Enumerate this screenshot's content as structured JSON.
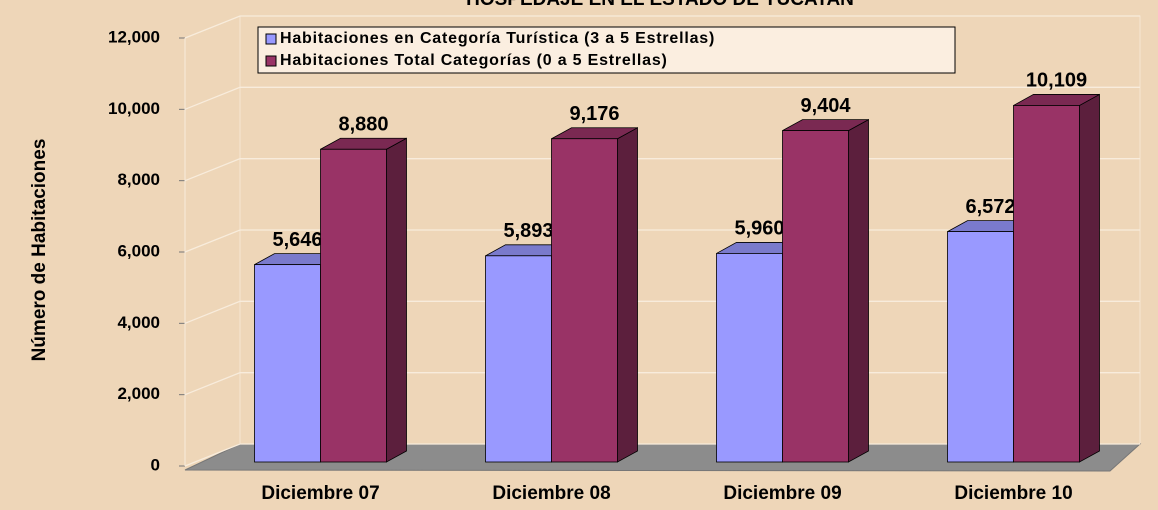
{
  "chart_data": {
    "type": "bar3d",
    "title": "HOSPEDAJE EN EL ESTADO DE YUCATAN",
    "y_label": "Número de Habitaciones",
    "categories": [
      "Diciembre 07",
      "Diciembre 08",
      "Diciembre 09",
      "Diciembre 10"
    ],
    "series": [
      {
        "name": "Habitaciones en Categoría Turística (3 a 5 Estrellas)",
        "color": "#9999ff",
        "values": [
          5646,
          5893,
          5960,
          6572
        ],
        "value_labels": [
          "5,646",
          "5,893",
          "5,960",
          "6,572"
        ]
      },
      {
        "name": "Habitaciones Total Categorías (0 a 5 Estrellas)",
        "color": "#993366",
        "values": [
          8880,
          9176,
          9404,
          10109
        ],
        "value_labels": [
          "8,880",
          "9,176",
          "9,404",
          "10,109"
        ]
      }
    ],
    "ylim": [
      0,
      12000
    ],
    "yticks": [
      0,
      {
        "value": 2000,
        "label": "2,000"
      },
      {
        "value": 4000,
        "label": "4,000"
      },
      {
        "value": 6000,
        "label": "6,000"
      },
      {
        "value": 8000,
        "label": "8,000"
      },
      {
        "value": 10000,
        "label": "10,000"
      },
      {
        "value": 12000,
        "label": "12,000"
      }
    ],
    "grid": true
  }
}
